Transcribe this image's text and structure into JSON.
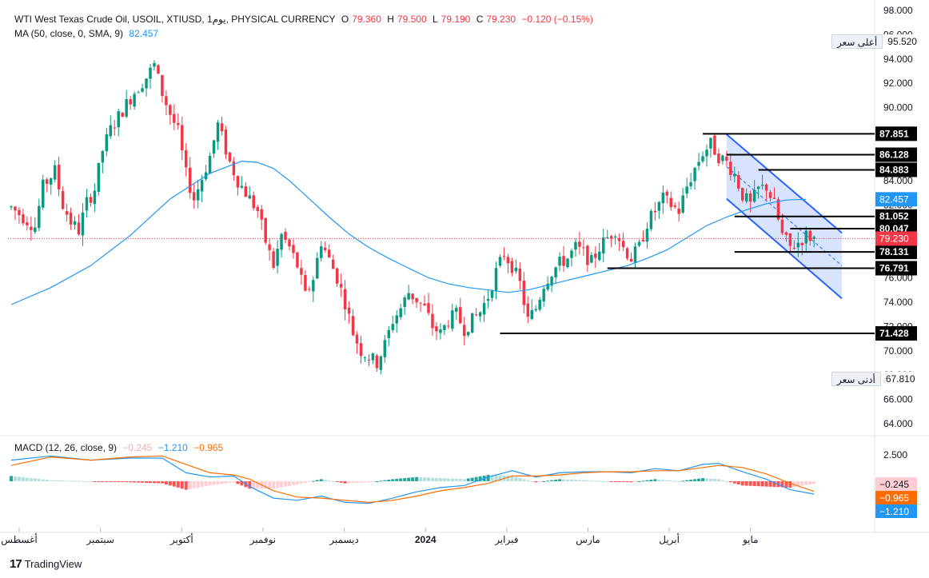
{
  "legend": {
    "symbol": "WTI West Texas Crude Oil, USOIL, XTIUSD, 1يوم, PHYSICAL CURRENCY",
    "open_label": "O",
    "open": "79.360",
    "high_label": "H",
    "high": "79.500",
    "low_label": "L",
    "low": "79.190",
    "close_label": "C",
    "close": "79.230",
    "change": "−0.120 (−0.15%)",
    "ma_label": "MA (50, close, 0, SMA, 9)",
    "ma_value": "82.457",
    "macd_label": "MACD (12, 26, close, 9)",
    "macd_hist": "−0.245",
    "macd_line": "−1.210",
    "macd_signal": "−0.965"
  },
  "high_badge": {
    "label": "أعلى سعر",
    "value": "95.520"
  },
  "low_badge": {
    "label": "أدنى سعر",
    "value": "67.810"
  },
  "footer": {
    "brand": "TradingView"
  },
  "colors": {
    "up": "#089981",
    "down": "#f23645",
    "ma": "#2196f3",
    "macd_line": "#2196f3",
    "signal": "#ff6d00",
    "channel": "#2962ff",
    "channel_fill": "#2962ff",
    "level_line": "#000000",
    "price_tag": "#f23645",
    "ma_tag": "#2196f3"
  },
  "chart_data": {
    "type": "candlestick",
    "title": "WTI West Texas Crude Oil, USOIL, XTIUSD, 1يوم, PHYSICAL CURRENCY",
    "y_axis": {
      "ticks": [
        "98.000",
        "96.000",
        "94.000",
        "92.000",
        "90.000",
        "88.000",
        "86.000",
        "84.000",
        "82.000",
        "80.000",
        "78.000",
        "76.000",
        "74.000",
        "72.000",
        "70.000",
        "68.000",
        "66.000",
        "64.000"
      ],
      "range": [
        63.0,
        98.0
      ]
    },
    "x_axis": {
      "labels": [
        "أغسطس",
        "سبتمبر",
        "أكتوبر",
        "نوفمبر",
        "ديسمبر",
        "2024",
        "فبراير",
        "مارس",
        "أبريل",
        "مايو"
      ]
    },
    "price_path": [
      [
        0,
        81.8
      ],
      [
        3,
        81.0
      ],
      [
        6,
        80.2
      ],
      [
        8,
        83.5
      ],
      [
        11,
        84.8
      ],
      [
        13,
        82.0
      ],
      [
        15,
        80.6
      ],
      [
        17,
        79.9
      ],
      [
        19,
        82.2
      ],
      [
        21,
        83.3
      ],
      [
        23,
        86.5
      ],
      [
        25,
        88.2
      ],
      [
        28,
        89.8
      ],
      [
        31,
        91.3
      ],
      [
        34,
        92.5
      ],
      [
        36,
        93.5
      ],
      [
        38,
        91.2
      ],
      [
        40,
        89.5
      ],
      [
        42,
        88.0
      ],
      [
        44,
        84.5
      ],
      [
        46,
        82.5
      ],
      [
        48,
        84.2
      ],
      [
        50,
        86.0
      ],
      [
        52,
        88.6
      ],
      [
        55,
        85.5
      ],
      [
        57,
        84.0
      ],
      [
        60,
        82.5
      ],
      [
        62,
        81.5
      ],
      [
        64,
        79.0
      ],
      [
        66,
        77.0
      ],
      [
        68,
        79.5
      ],
      [
        70,
        78.5
      ],
      [
        72,
        77.0
      ],
      [
        74,
        74.5
      ],
      [
        76,
        76.0
      ],
      [
        78,
        79.0
      ],
      [
        80,
        77.5
      ],
      [
        82,
        76.0
      ],
      [
        84,
        74.0
      ],
      [
        86,
        71.5
      ],
      [
        88,
        70.0
      ],
      [
        90,
        69.5
      ],
      [
        92,
        69.0
      ],
      [
        94,
        70.5
      ],
      [
        96,
        72.5
      ],
      [
        98,
        73.5
      ],
      [
        100,
        74.8
      ],
      [
        102,
        74.2
      ],
      [
        104,
        73.5
      ],
      [
        106,
        72.0
      ],
      [
        108,
        71.4
      ],
      [
        110,
        72.5
      ],
      [
        112,
        73.0
      ],
      [
        114,
        71.8
      ],
      [
        116,
        72.5
      ],
      [
        118,
        73.2
      ],
      [
        120,
        74.5
      ],
      [
        122,
        76.5
      ],
      [
        124,
        78.0
      ],
      [
        126,
        77.0
      ],
      [
        128,
        75.5
      ],
      [
        130,
        72.5
      ],
      [
        132,
        73.5
      ],
      [
        134,
        75.5
      ],
      [
        136,
        76.5
      ],
      [
        138,
        77.2
      ],
      [
        140,
        77.6
      ],
      [
        142,
        78.5
      ],
      [
        144,
        78.0
      ],
      [
        146,
        77.3
      ],
      [
        148,
        78.5
      ],
      [
        150,
        79.3
      ],
      [
        152,
        80.0
      ],
      [
        154,
        78.5
      ],
      [
        156,
        77.6
      ],
      [
        158,
        78.5
      ],
      [
        160,
        80.5
      ],
      [
        162,
        81.5
      ],
      [
        164,
        82.5
      ],
      [
        166,
        82.0
      ],
      [
        168,
        81.5
      ],
      [
        170,
        83.5
      ],
      [
        172,
        85.0
      ],
      [
        174,
        86.3
      ],
      [
        176,
        87.0
      ],
      [
        178,
        86.0
      ],
      [
        180,
        85.5
      ],
      [
        182,
        84.5
      ],
      [
        184,
        82.8
      ],
      [
        186,
        82.0
      ],
      [
        188,
        83.3
      ],
      [
        190,
        83.5
      ],
      [
        192,
        82.0
      ],
      [
        194,
        79.5
      ],
      [
        196,
        78.5
      ],
      [
        198,
        78.9
      ],
      [
        200,
        79.5
      ],
      [
        202,
        79.23
      ]
    ],
    "ma_series": [
      [
        0,
        73.8
      ],
      [
        10,
        75.2
      ],
      [
        20,
        77.0
      ],
      [
        30,
        79.5
      ],
      [
        40,
        82.5
      ],
      [
        50,
        84.6
      ],
      [
        58,
        85.6
      ],
      [
        62,
        85.5
      ],
      [
        66,
        85.0
      ],
      [
        70,
        84.0
      ],
      [
        75,
        82.5
      ],
      [
        80,
        81.0
      ],
      [
        85,
        79.6
      ],
      [
        90,
        78.5
      ],
      [
        95,
        77.6
      ],
      [
        100,
        76.8
      ],
      [
        105,
        76.0
      ],
      [
        110,
        75.5
      ],
      [
        115,
        75.2
      ],
      [
        120,
        75.0
      ],
      [
        125,
        74.8
      ],
      [
        130,
        75.0
      ],
      [
        135,
        75.4
      ],
      [
        140,
        75.8
      ],
      [
        145,
        76.2
      ],
      [
        150,
        76.6
      ],
      [
        155,
        77.0
      ],
      [
        160,
        77.6
      ],
      [
        165,
        78.3
      ],
      [
        170,
        79.3
      ],
      [
        175,
        80.3
      ],
      [
        180,
        81.0
      ],
      [
        185,
        81.6
      ],
      [
        190,
        82.1
      ],
      [
        195,
        82.4
      ],
      [
        200,
        82.457
      ]
    ],
    "levels": [
      {
        "value": 87.851,
        "label": "87.851",
        "from_bar": 174
      },
      {
        "value": 86.128,
        "label": "86.128",
        "from_bar": 180
      },
      {
        "value": 84.883,
        "label": "84.883",
        "from_bar": 188
      },
      {
        "value": 81.052,
        "label": "81.052",
        "from_bar": 182
      },
      {
        "value": 80.047,
        "label": "80.047",
        "from_bar": 196
      },
      {
        "value": 78.131,
        "label": "78.131",
        "from_bar": 182
      },
      {
        "value": 76.791,
        "label": "76.791",
        "from_bar": 150
      },
      {
        "value": 71.428,
        "label": "71.428",
        "from_bar": 123
      }
    ],
    "channel": {
      "upper_start": [
        180,
        87.8
      ],
      "upper_end": [
        209,
        79.7
      ],
      "lower_start": [
        180,
        82.5
      ],
      "lower_end": [
        209,
        74.3
      ]
    },
    "current_price": {
      "value": 79.23,
      "label": "79.230"
    },
    "ma_tag": {
      "value": 82.457,
      "label": "82.457"
    },
    "macd": {
      "axis_ticks": [
        "2.500"
      ],
      "range": [
        -2.6,
        3.4
      ],
      "tags": [
        {
          "value": -0.245,
          "label": "−0.245",
          "kind": "hist"
        },
        {
          "value": -0.965,
          "label": "−0.965",
          "kind": "signal"
        },
        {
          "value": -1.21,
          "label": "−1.210",
          "kind": "macd"
        }
      ],
      "macd_path": [
        [
          0,
          2.0
        ],
        [
          10,
          2.4
        ],
        [
          20,
          2.0
        ],
        [
          30,
          2.2
        ],
        [
          38,
          2.2
        ],
        [
          44,
          0.8
        ],
        [
          50,
          0.4
        ],
        [
          56,
          0.5
        ],
        [
          60,
          -0.5
        ],
        [
          66,
          -1.6
        ],
        [
          72,
          -1.8
        ],
        [
          78,
          -1.4
        ],
        [
          84,
          -2.0
        ],
        [
          90,
          -2.1
        ],
        [
          96,
          -1.6
        ],
        [
          102,
          -1.0
        ],
        [
          108,
          -0.6
        ],
        [
          114,
          -0.4
        ],
        [
          120,
          0.4
        ],
        [
          126,
          1.0
        ],
        [
          132,
          0.4
        ],
        [
          138,
          0.8
        ],
        [
          144,
          0.9
        ],
        [
          150,
          0.9
        ],
        [
          156,
          0.8
        ],
        [
          162,
          1.2
        ],
        [
          168,
          1.0
        ],
        [
          174,
          1.6
        ],
        [
          178,
          1.7
        ],
        [
          184,
          0.9
        ],
        [
          190,
          0.2
        ],
        [
          196,
          -0.8
        ],
        [
          202,
          -1.21
        ]
      ],
      "signal_path": [
        [
          0,
          1.5
        ],
        [
          10,
          2.3
        ],
        [
          20,
          2.0
        ],
        [
          30,
          2.3
        ],
        [
          38,
          2.4
        ],
        [
          44,
          1.6
        ],
        [
          50,
          0.8
        ],
        [
          56,
          0.6
        ],
        [
          60,
          0.2
        ],
        [
          66,
          -0.9
        ],
        [
          72,
          -1.5
        ],
        [
          78,
          -1.6
        ],
        [
          84,
          -1.8
        ],
        [
          90,
          -2.0
        ],
        [
          96,
          -1.8
        ],
        [
          102,
          -1.4
        ],
        [
          108,
          -0.9
        ],
        [
          114,
          -0.6
        ],
        [
          120,
          -0.2
        ],
        [
          126,
          0.5
        ],
        [
          132,
          0.5
        ],
        [
          138,
          0.6
        ],
        [
          144,
          0.8
        ],
        [
          150,
          0.9
        ],
        [
          156,
          0.9
        ],
        [
          162,
          1.0
        ],
        [
          168,
          1.0
        ],
        [
          174,
          1.3
        ],
        [
          178,
          1.5
        ],
        [
          184,
          1.3
        ],
        [
          190,
          0.7
        ],
        [
          196,
          -0.2
        ],
        [
          202,
          -0.965
        ]
      ]
    }
  }
}
